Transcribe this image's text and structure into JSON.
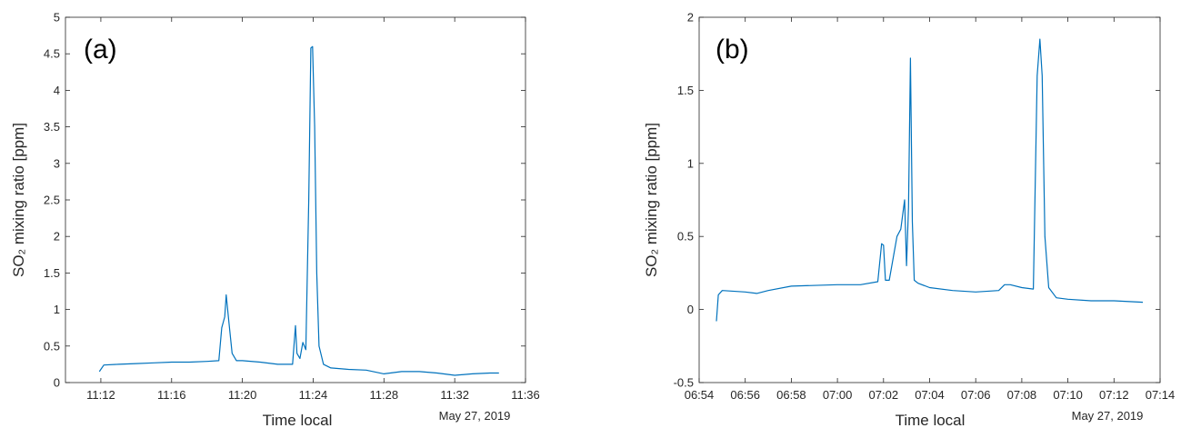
{
  "colors": {
    "line": "#0072BD",
    "axis": "#262626"
  },
  "chart_data": [
    {
      "type": "line",
      "panel_label": "(a)",
      "xlabel": "Time local",
      "ylabel": "SO₂ mixing ratio [ppm]",
      "date_label": "May 27, 2019",
      "xlim": [
        "11:10",
        "11:36"
      ],
      "ylim": [
        0,
        5
      ],
      "xticks": [
        "11:12",
        "11:16",
        "11:20",
        "11:24",
        "11:28",
        "11:32",
        "11:36"
      ],
      "yticks": [
        "0",
        "0.5",
        "1",
        "1.5",
        "2",
        "2.5",
        "3",
        "3.5",
        "4",
        "4.5",
        "5"
      ],
      "grid": false,
      "series": [
        {
          "x": [
            "11:11:55",
            "11:12:10",
            "11:13:00",
            "11:14:00",
            "11:15:00",
            "11:16:00",
            "11:17:00",
            "11:18:00",
            "11:18:40",
            "11:18:50",
            "11:19:00",
            "11:19:05",
            "11:19:15",
            "11:19:25",
            "11:19:40",
            "11:20:00",
            "11:21:00",
            "11:22:00",
            "11:22:50",
            "11:23:00",
            "11:23:05",
            "11:23:15",
            "11:23:25",
            "11:23:35",
            "11:23:45",
            "11:23:52",
            "11:23:58",
            "11:24:05",
            "11:24:12",
            "11:24:20",
            "11:24:35",
            "11:25:00",
            "11:26:00",
            "11:27:00",
            "11:28:00",
            "11:29:00",
            "11:30:00",
            "11:31:00",
            "11:32:00",
            "11:33:00",
            "11:34:00",
            "11:34:30"
          ],
          "y": [
            0.15,
            0.24,
            0.25,
            0.26,
            0.27,
            0.28,
            0.28,
            0.29,
            0.3,
            0.75,
            0.9,
            1.2,
            0.8,
            0.4,
            0.3,
            0.3,
            0.28,
            0.25,
            0.25,
            0.78,
            0.4,
            0.33,
            0.55,
            0.45,
            2.5,
            4.58,
            4.6,
            3.5,
            1.5,
            0.5,
            0.25,
            0.2,
            0.18,
            0.17,
            0.12,
            0.15,
            0.15,
            0.13,
            0.1,
            0.12,
            0.13,
            0.13
          ]
        }
      ]
    },
    {
      "type": "line",
      "panel_label": "(b)",
      "xlabel": "Time local",
      "ylabel": "SO₂ mixing ratio [ppm]",
      "date_label": "May 27, 2019",
      "xlim": [
        "06:54",
        "07:14"
      ],
      "ylim": [
        -0.5,
        2
      ],
      "xticks": [
        "06:54",
        "06:56",
        "06:58",
        "07:00",
        "07:02",
        "07:04",
        "07:06",
        "07:08",
        "07:10",
        "07:12",
        "07:14"
      ],
      "yticks": [
        "-0.5",
        "0",
        "0.5",
        "1",
        "1.5",
        "2"
      ],
      "grid": false,
      "series": [
        {
          "x": [
            "06:54:45",
            "06:54:50",
            "06:55:00",
            "06:56:00",
            "06:56:30",
            "06:57:00",
            "06:58:00",
            "07:00:00",
            "07:01:00",
            "07:01:45",
            "07:01:55",
            "07:02:00",
            "07:02:05",
            "07:02:15",
            "07:02:35",
            "07:02:45",
            "07:02:55",
            "07:03:00",
            "07:03:05",
            "07:03:10",
            "07:03:15",
            "07:03:20",
            "07:03:30",
            "07:04:00",
            "07:05:00",
            "07:06:00",
            "07:07:00",
            "07:07:15",
            "07:07:30",
            "07:08:00",
            "07:08:30",
            "07:08:40",
            "07:08:47",
            "07:08:53",
            "07:09:00",
            "07:09:10",
            "07:09:30",
            "07:10:00",
            "07:11:00",
            "07:12:00",
            "07:13:15"
          ],
          "y": [
            -0.08,
            0.1,
            0.13,
            0.12,
            0.11,
            0.13,
            0.16,
            0.17,
            0.17,
            0.19,
            0.45,
            0.44,
            0.2,
            0.2,
            0.5,
            0.55,
            0.75,
            0.3,
            0.7,
            1.72,
            0.6,
            0.2,
            0.18,
            0.15,
            0.13,
            0.12,
            0.13,
            0.17,
            0.17,
            0.15,
            0.14,
            1.6,
            1.85,
            1.6,
            0.5,
            0.15,
            0.08,
            0.07,
            0.06,
            0.06,
            0.05
          ]
        }
      ]
    }
  ]
}
